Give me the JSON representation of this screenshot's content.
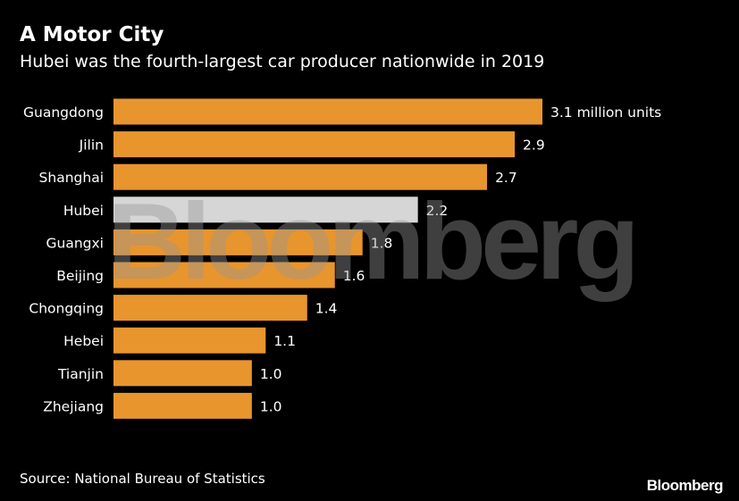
{
  "header": {
    "title": "A Motor City",
    "subtitle": "Hubei was the fourth-largest car producer nationwide in 2019"
  },
  "footer": {
    "source": "Source: National Bureau of Statistics",
    "logo": "Bloomberg"
  },
  "watermark": "Bloomberg",
  "colors": {
    "background": "#000000",
    "bar": "#E8952E",
    "highlight": "#D6D6D6",
    "text": "#FFFFFF"
  },
  "chart_data": {
    "type": "bar",
    "orientation": "horizontal",
    "categories": [
      "Guangdong",
      "Jilin",
      "Shanghai",
      "Hubei",
      "Guangxi",
      "Beijing",
      "Chongqing",
      "Hebei",
      "Tianjin",
      "Zhejiang"
    ],
    "values": [
      3.1,
      2.9,
      2.7,
      2.2,
      1.8,
      1.6,
      1.4,
      1.1,
      1.0,
      1.0
    ],
    "value_labels": [
      "3.1 million units",
      "2.9",
      "2.7",
      "2.2",
      "1.8",
      "1.6",
      "1.4",
      "1.1",
      "1.0",
      "1.0"
    ],
    "highlight": "Hubei",
    "xlim": [
      0,
      3.1
    ],
    "grid": false,
    "legend": "none"
  }
}
